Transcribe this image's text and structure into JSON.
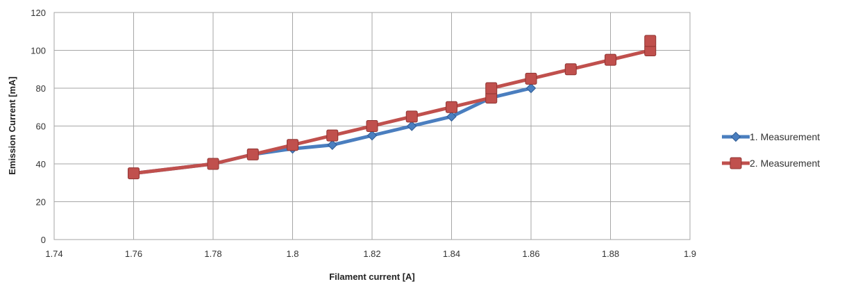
{
  "chart_data": {
    "type": "line",
    "xlabel": "Filament current [A]",
    "ylabel": "Emission Current [mA]",
    "xlim": [
      1.74,
      1.9
    ],
    "ylim": [
      0,
      120
    ],
    "x_ticks": [
      "1.74",
      "1.76",
      "1.78",
      "1.8",
      "1.82",
      "1.84",
      "1.86",
      "1.88",
      "1.9"
    ],
    "y_ticks": [
      "0",
      "20",
      "40",
      "60",
      "80",
      "100",
      "120"
    ],
    "grid": true,
    "legend_position": "right",
    "series": [
      {
        "name": "1. Measurement",
        "color": "#4a7ebf",
        "marker": "diamond",
        "points": [
          [
            1.76,
            35
          ],
          [
            1.78,
            40
          ],
          [
            1.79,
            45
          ],
          [
            1.8,
            48
          ],
          [
            1.81,
            50
          ],
          [
            1.82,
            55
          ],
          [
            1.83,
            60
          ],
          [
            1.84,
            65
          ],
          [
            1.85,
            75
          ],
          [
            1.86,
            80
          ]
        ]
      },
      {
        "name": "2. Measurement",
        "color": "#c0504d",
        "marker": "square",
        "points": [
          [
            1.76,
            35
          ],
          [
            1.78,
            40
          ],
          [
            1.79,
            45
          ],
          [
            1.8,
            50
          ],
          [
            1.81,
            55
          ],
          [
            1.82,
            60
          ],
          [
            1.83,
            65
          ],
          [
            1.84,
            70
          ],
          [
            1.85,
            75
          ],
          [
            1.85,
            80
          ],
          [
            1.86,
            85
          ],
          [
            1.87,
            90
          ],
          [
            1.88,
            95
          ],
          [
            1.89,
            100
          ],
          [
            1.89,
            105
          ]
        ]
      }
    ]
  }
}
